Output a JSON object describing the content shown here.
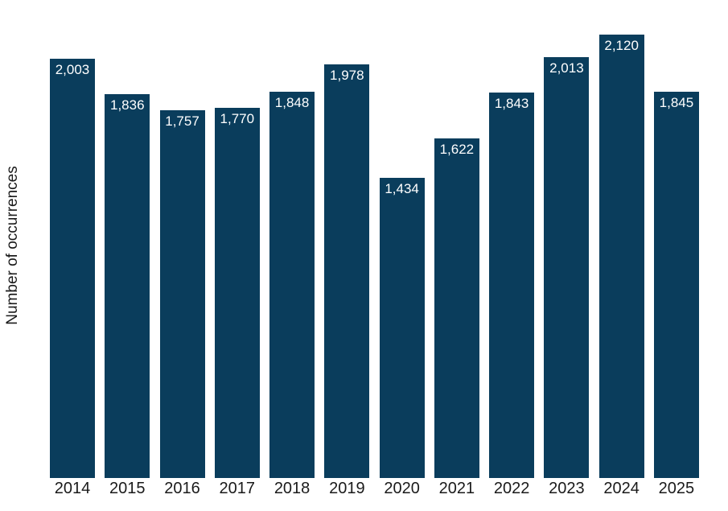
{
  "chart_data": {
    "type": "bar",
    "title": "",
    "xlabel": "",
    "ylabel": "Number of occurrences",
    "categories": [
      "2014",
      "2015",
      "2016",
      "2017",
      "2018",
      "2019",
      "2020",
      "2021",
      "2022",
      "2023",
      "2024",
      "2025"
    ],
    "values": [
      2003,
      1836,
      1757,
      1770,
      1848,
      1978,
      1434,
      1622,
      1843,
      2013,
      2120,
      1845
    ],
    "value_labels": [
      "2,003",
      "1,836",
      "1,757",
      "1,770",
      "1,848",
      "1,978",
      "1,434",
      "1,622",
      "1,843",
      "2,013",
      "2,120",
      "1,845"
    ],
    "ylim": [
      0,
      2200
    ],
    "grid": false,
    "legend": "none",
    "colors": {
      "bar": "#0A3D5C",
      "value_label": "#FFFFFF",
      "axis_text": "#1A1A1A",
      "background": "#FFFFFF"
    }
  }
}
